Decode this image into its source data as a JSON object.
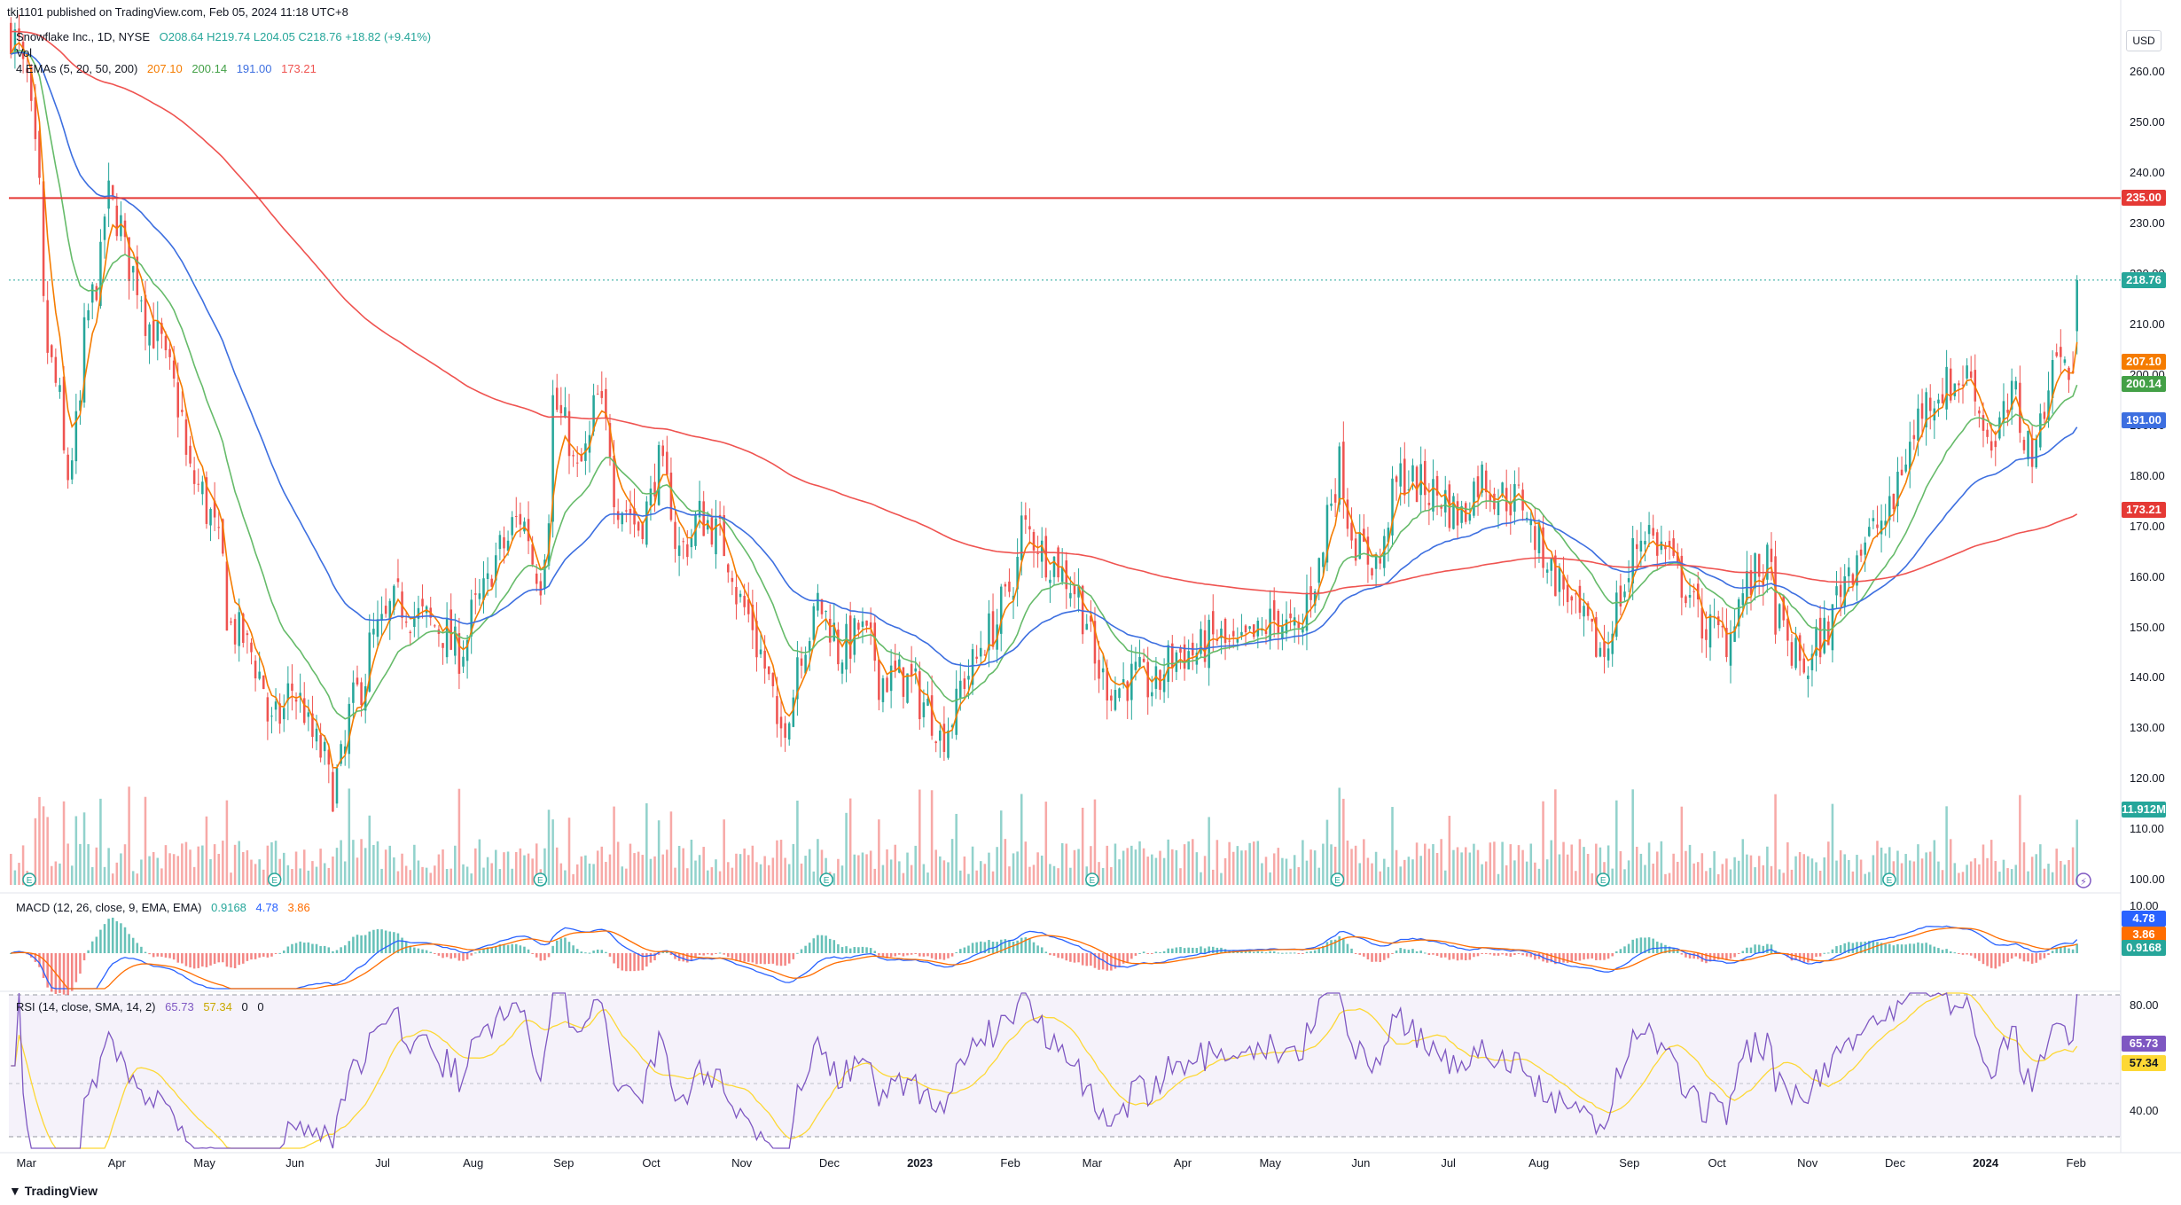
{
  "header": {
    "published": "tkj1101 published on TradingView.com, Feb 05, 2024 11:18 UTC+8",
    "symbol": "Snowflake Inc., 1D, NYSE",
    "ohlc": "O208.64 H219.74 L204.05 C218.76 +18.82 (+9.41%)",
    "vol_label": "Vol",
    "ema_label": "4 EMAs (5, 20, 50, 200)",
    "ema_values": [
      "207.10",
      "200.14",
      "191.00",
      "173.21"
    ],
    "macd_label": "MACD (12, 26, close, 9, EMA, EMA)",
    "macd_values": [
      "0.9168",
      "4.78",
      "3.86"
    ],
    "rsi_label": "RSI (14, close, SMA, 14, 2)",
    "rsi_values": [
      "65.73",
      "57.34",
      "0",
      "0"
    ]
  },
  "currency": "USD",
  "brand": "TradingView",
  "colors": {
    "up": "#26a69a",
    "down": "#ef5350",
    "ema5": "#f57c00",
    "ema20": "#66bb6a",
    "ema50": "#3d6fe0",
    "ema200": "#ef5350",
    "resistance": "#e53935",
    "rsi": "#7e57c2",
    "rsi_ma": "#fdd835"
  },
  "chart_data": {
    "type": "candlestick",
    "price_axis_ticks": [
      "260.00",
      "250.00",
      "240.00",
      "230.00",
      "220.00",
      "210.00",
      "200.00",
      "190.00",
      "180.00",
      "170.00",
      "160.00",
      "150.00",
      "140.00",
      "130.00",
      "120.00",
      "110.00",
      "100.00"
    ],
    "ylim": [
      99,
      270
    ],
    "x_labels": [
      "Mar",
      "Apr",
      "May",
      "Jun",
      "Jul",
      "Aug",
      "Sep",
      "Oct",
      "Nov",
      "Dec",
      "2023",
      "Feb",
      "Mar",
      "Apr",
      "May",
      "Jun",
      "Jul",
      "Aug",
      "Sep",
      "Oct",
      "Nov",
      "Dec",
      "2024",
      "Feb"
    ],
    "x_bold": [
      "2023",
      "2024"
    ],
    "x_range": [
      "2022-02-23",
      "2024-02-02"
    ],
    "price_trend": [
      [
        "2022-02-23",
        268
      ],
      [
        "2022-03-01",
        258
      ],
      [
        "2022-03-08",
        205
      ],
      [
        "2022-03-15",
        180
      ],
      [
        "2022-03-22",
        212
      ],
      [
        "2022-03-29",
        235
      ],
      [
        "2022-04-05",
        222
      ],
      [
        "2022-04-12",
        210
      ],
      [
        "2022-04-19",
        200
      ],
      [
        "2022-04-26",
        180
      ],
      [
        "2022-05-03",
        172
      ],
      [
        "2022-05-10",
        150
      ],
      [
        "2022-05-17",
        145
      ],
      [
        "2022-05-24",
        130
      ],
      [
        "2022-05-31",
        138
      ],
      [
        "2022-06-07",
        128
      ],
      [
        "2022-06-14",
        118
      ],
      [
        "2022-06-21",
        135
      ],
      [
        "2022-06-28",
        148
      ],
      [
        "2022-07-06",
        155
      ],
      [
        "2022-07-13",
        152
      ],
      [
        "2022-07-20",
        150
      ],
      [
        "2022-07-27",
        145
      ],
      [
        "2022-08-03",
        155
      ],
      [
        "2022-08-10",
        165
      ],
      [
        "2022-08-17",
        172
      ],
      [
        "2022-08-24",
        160
      ],
      [
        "2022-08-29",
        195
      ],
      [
        "2022-09-06",
        180
      ],
      [
        "2022-09-13",
        195
      ],
      [
        "2022-09-20",
        175
      ],
      [
        "2022-09-27",
        170
      ],
      [
        "2022-10-04",
        182
      ],
      [
        "2022-10-11",
        165
      ],
      [
        "2022-10-18",
        172
      ],
      [
        "2022-10-25",
        168
      ],
      [
        "2022-11-01",
        155
      ],
      [
        "2022-11-08",
        145
      ],
      [
        "2022-11-14",
        127
      ],
      [
        "2022-11-21",
        145
      ],
      [
        "2022-11-28",
        155
      ],
      [
        "2022-12-05",
        145
      ],
      [
        "2022-12-12",
        150
      ],
      [
        "2022-12-19",
        140
      ],
      [
        "2022-12-27",
        140
      ],
      [
        "2023-01-03",
        135
      ],
      [
        "2023-01-09",
        128
      ],
      [
        "2023-01-17",
        140
      ],
      [
        "2023-01-24",
        148
      ],
      [
        "2023-01-31",
        155
      ],
      [
        "2023-02-06",
        170
      ],
      [
        "2023-02-13",
        165
      ],
      [
        "2023-02-21",
        160
      ],
      [
        "2023-02-28",
        152
      ],
      [
        "2023-03-02",
        142
      ],
      [
        "2023-03-09",
        138
      ],
      [
        "2023-03-16",
        140
      ],
      [
        "2023-03-23",
        138
      ],
      [
        "2023-03-30",
        145
      ],
      [
        "2023-04-06",
        145
      ],
      [
        "2023-04-13",
        148
      ],
      [
        "2023-04-20",
        145
      ],
      [
        "2023-04-27",
        148
      ],
      [
        "2023-05-04",
        152
      ],
      [
        "2023-05-11",
        148
      ],
      [
        "2023-05-18",
        162
      ],
      [
        "2023-05-25",
        182
      ],
      [
        "2023-06-01",
        165
      ],
      [
        "2023-06-08",
        163
      ],
      [
        "2023-06-15",
        180
      ],
      [
        "2023-06-22",
        178
      ],
      [
        "2023-06-29",
        176
      ],
      [
        "2023-07-06",
        172
      ],
      [
        "2023-07-13",
        180
      ],
      [
        "2023-07-20",
        176
      ],
      [
        "2023-07-27",
        175
      ],
      [
        "2023-08-03",
        165
      ],
      [
        "2023-08-10",
        158
      ],
      [
        "2023-08-17",
        150
      ],
      [
        "2023-08-24",
        145
      ],
      [
        "2023-08-31",
        158
      ],
      [
        "2023-09-07",
        170
      ],
      [
        "2023-09-14",
        165
      ],
      [
        "2023-09-21",
        158
      ],
      [
        "2023-09-28",
        150
      ],
      [
        "2023-10-05",
        148
      ],
      [
        "2023-10-12",
        158
      ],
      [
        "2023-10-19",
        162
      ],
      [
        "2023-10-26",
        146
      ],
      [
        "2023-11-02",
        142
      ],
      [
        "2023-11-09",
        150
      ],
      [
        "2023-11-16",
        162
      ],
      [
        "2023-11-23",
        168
      ],
      [
        "2023-11-30",
        172
      ],
      [
        "2023-12-07",
        186
      ],
      [
        "2023-12-14",
        196
      ],
      [
        "2023-12-21",
        198
      ],
      [
        "2023-12-28",
        200
      ],
      [
        "2024-01-05",
        185
      ],
      [
        "2024-01-12",
        196
      ],
      [
        "2024-01-19",
        183
      ],
      [
        "2024-01-26",
        205
      ],
      [
        "2024-02-01",
        200
      ],
      [
        "2024-02-02",
        218.76
      ]
    ],
    "ema_series": [
      {
        "name": "EMA 5",
        "period": 5,
        "last": 207.1
      },
      {
        "name": "EMA 20",
        "period": 20,
        "last": 200.14
      },
      {
        "name": "EMA 50",
        "period": 50,
        "last": 191.0
      },
      {
        "name": "EMA 200",
        "period": 200,
        "last": 173.21
      }
    ],
    "last_close": 218.76,
    "resistance_level": 235.0,
    "earnings_markers": [
      "2022-03-02",
      "2022-05-25",
      "2022-08-24",
      "2022-11-30",
      "2023-03-01",
      "2023-05-24",
      "2023-08-23",
      "2023-11-29"
    ],
    "volume_label": "11.912M",
    "macd_axis_ticks": [
      "10.00",
      "0.00"
    ],
    "rsi_axis_ticks": [
      "80.00",
      "40.00"
    ],
    "rsi_bands": [
      70,
      30
    ]
  }
}
